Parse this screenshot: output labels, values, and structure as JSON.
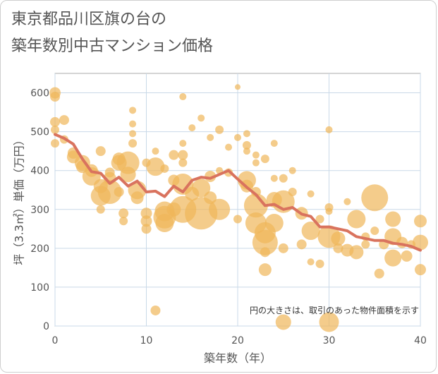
{
  "header": {
    "title_line1": "東京都品川区旗の台の",
    "title_line2": "築年数別中古マンション価格"
  },
  "colors": {
    "bubble": "#f0b65a",
    "line": "#d9735e",
    "grid": "#c9d9e8",
    "plot_border": "#aaaaaa"
  },
  "chart_data": {
    "type": "scatter",
    "xlabel": "築年数（年）",
    "ylabel": "坪（3.3㎡）単価（万円）",
    "xlim": [
      0,
      40
    ],
    "ylim": [
      0,
      650
    ],
    "xticks": [
      0,
      10,
      20,
      30,
      40
    ],
    "yticks": [
      0,
      100,
      200,
      300,
      400,
      500,
      600
    ],
    "note": "円の大きさは、取引のあった物件面積を示す",
    "grid": true,
    "bubbles": [
      {
        "x": 0,
        "y": 600,
        "s": 8
      },
      {
        "x": 0,
        "y": 590,
        "s": 7
      },
      {
        "x": 0,
        "y": 525,
        "s": 7
      },
      {
        "x": 0,
        "y": 505,
        "s": 6
      },
      {
        "x": 0,
        "y": 470,
        "s": 6
      },
      {
        "x": 1,
        "y": 530,
        "s": 7
      },
      {
        "x": 1,
        "y": 480,
        "s": 6
      },
      {
        "x": 2,
        "y": 445,
        "s": 8
      },
      {
        "x": 2,
        "y": 435,
        "s": 9
      },
      {
        "x": 3,
        "y": 420,
        "s": 11
      },
      {
        "x": 3,
        "y": 410,
        "s": 9
      },
      {
        "x": 4,
        "y": 385,
        "s": 13
      },
      {
        "x": 4,
        "y": 400,
        "s": 9
      },
      {
        "x": 5,
        "y": 450,
        "s": 7
      },
      {
        "x": 5,
        "y": 360,
        "s": 10
      },
      {
        "x": 5,
        "y": 335,
        "s": 14
      },
      {
        "x": 5,
        "y": 300,
        "s": 6
      },
      {
        "x": 6,
        "y": 345,
        "s": 17
      },
      {
        "x": 6,
        "y": 380,
        "s": 9
      },
      {
        "x": 6,
        "y": 395,
        "s": 7
      },
      {
        "x": 7,
        "y": 430,
        "s": 9
      },
      {
        "x": 7,
        "y": 420,
        "s": 11
      },
      {
        "x": 7,
        "y": 345,
        "s": 7
      },
      {
        "x": 7.5,
        "y": 290,
        "s": 7
      },
      {
        "x": 7.5,
        "y": 270,
        "s": 6
      },
      {
        "x": 8,
        "y": 420,
        "s": 16
      },
      {
        "x": 8,
        "y": 390,
        "s": 11
      },
      {
        "x": 8.5,
        "y": 555,
        "s": 5
      },
      {
        "x": 8.5,
        "y": 520,
        "s": 5
      },
      {
        "x": 8.5,
        "y": 495,
        "s": 5
      },
      {
        "x": 8.5,
        "y": 470,
        "s": 6
      },
      {
        "x": 9,
        "y": 350,
        "s": 13
      },
      {
        "x": 9,
        "y": 330,
        "s": 9
      },
      {
        "x": 10,
        "y": 290,
        "s": 8
      },
      {
        "x": 10,
        "y": 270,
        "s": 8
      },
      {
        "x": 10,
        "y": 250,
        "s": 7
      },
      {
        "x": 10,
        "y": 420,
        "s": 6
      },
      {
        "x": 11,
        "y": 450,
        "s": 5
      },
      {
        "x": 11,
        "y": 410,
        "s": 13
      },
      {
        "x": 11,
        "y": 40,
        "s": 7
      },
      {
        "x": 12,
        "y": 295,
        "s": 14
      },
      {
        "x": 12,
        "y": 280,
        "s": 16
      },
      {
        "x": 12,
        "y": 265,
        "s": 13
      },
      {
        "x": 12,
        "y": 405,
        "s": 6
      },
      {
        "x": 13,
        "y": 375,
        "s": 8
      },
      {
        "x": 13,
        "y": 440,
        "s": 7
      },
      {
        "x": 13,
        "y": 300,
        "s": 10
      },
      {
        "x": 14,
        "y": 590,
        "s": 5
      },
      {
        "x": 14,
        "y": 470,
        "s": 5
      },
      {
        "x": 14,
        "y": 440,
        "s": 7
      },
      {
        "x": 14,
        "y": 420,
        "s": 6
      },
      {
        "x": 14,
        "y": 365,
        "s": 15
      },
      {
        "x": 14,
        "y": 300,
        "s": 19
      },
      {
        "x": 15,
        "y": 510,
        "s": 5
      },
      {
        "x": 15,
        "y": 340,
        "s": 10
      },
      {
        "x": 16,
        "y": 535,
        "s": 5
      },
      {
        "x": 16,
        "y": 355,
        "s": 13
      },
      {
        "x": 16,
        "y": 290,
        "s": 23
      },
      {
        "x": 17,
        "y": 485,
        "s": 5
      },
      {
        "x": 17,
        "y": 385,
        "s": 8
      },
      {
        "x": 17,
        "y": 330,
        "s": 9
      },
      {
        "x": 18,
        "y": 505,
        "s": 6
      },
      {
        "x": 18,
        "y": 300,
        "s": 15
      },
      {
        "x": 18,
        "y": 400,
        "s": 5
      },
      {
        "x": 19,
        "y": 460,
        "s": 5
      },
      {
        "x": 19,
        "y": 395,
        "s": 6
      },
      {
        "x": 20,
        "y": 615,
        "s": 4
      },
      {
        "x": 20,
        "y": 485,
        "s": 5
      },
      {
        "x": 20,
        "y": 275,
        "s": 6
      },
      {
        "x": 21,
        "y": 495,
        "s": 5
      },
      {
        "x": 21,
        "y": 465,
        "s": 6
      },
      {
        "x": 21,
        "y": 450,
        "s": 5
      },
      {
        "x": 21,
        "y": 375,
        "s": 13
      },
      {
        "x": 21,
        "y": 360,
        "s": 9
      },
      {
        "x": 22,
        "y": 440,
        "s": 5
      },
      {
        "x": 22,
        "y": 420,
        "s": 5
      },
      {
        "x": 22,
        "y": 345,
        "s": 7
      },
      {
        "x": 22,
        "y": 310,
        "s": 17
      },
      {
        "x": 22,
        "y": 265,
        "s": 15
      },
      {
        "x": 23,
        "y": 430,
        "s": 6
      },
      {
        "x": 23,
        "y": 240,
        "s": 15
      },
      {
        "x": 23,
        "y": 215,
        "s": 18
      },
      {
        "x": 23,
        "y": 190,
        "s": 7
      },
      {
        "x": 23,
        "y": 145,
        "s": 9
      },
      {
        "x": 24,
        "y": 470,
        "s": 5
      },
      {
        "x": 24,
        "y": 380,
        "s": 5
      },
      {
        "x": 24,
        "y": 325,
        "s": 11
      },
      {
        "x": 24,
        "y": 265,
        "s": 13
      },
      {
        "x": 25,
        "y": 380,
        "s": 6
      },
      {
        "x": 25,
        "y": 320,
        "s": 16
      },
      {
        "x": 25,
        "y": 200,
        "s": 7
      },
      {
        "x": 25,
        "y": 10,
        "s": 11
      },
      {
        "x": 26,
        "y": 400,
        "s": 5
      },
      {
        "x": 26,
        "y": 345,
        "s": 6
      },
      {
        "x": 27,
        "y": 290,
        "s": 9
      },
      {
        "x": 27,
        "y": 210,
        "s": 7
      },
      {
        "x": 28,
        "y": 340,
        "s": 5
      },
      {
        "x": 28,
        "y": 245,
        "s": 13
      },
      {
        "x": 28,
        "y": 165,
        "s": 5
      },
      {
        "x": 29,
        "y": 275,
        "s": 6
      },
      {
        "x": 29,
        "y": 160,
        "s": 6
      },
      {
        "x": 30,
        "y": 505,
        "s": 5
      },
      {
        "x": 30,
        "y": 305,
        "s": 6
      },
      {
        "x": 30,
        "y": 295,
        "s": 5
      },
      {
        "x": 30,
        "y": 230,
        "s": 16
      },
      {
        "x": 30,
        "y": 10,
        "s": 14
      },
      {
        "x": 31,
        "y": 225,
        "s": 10
      },
      {
        "x": 31,
        "y": 200,
        "s": 7
      },
      {
        "x": 32,
        "y": 320,
        "s": 5
      },
      {
        "x": 32,
        "y": 195,
        "s": 9
      },
      {
        "x": 33,
        "y": 275,
        "s": 13
      },
      {
        "x": 33,
        "y": 190,
        "s": 10
      },
      {
        "x": 34,
        "y": 230,
        "s": 6
      },
      {
        "x": 34,
        "y": 210,
        "s": 6
      },
      {
        "x": 35,
        "y": 330,
        "s": 19
      },
      {
        "x": 35,
        "y": 245,
        "s": 6
      },
      {
        "x": 35.5,
        "y": 135,
        "s": 7
      },
      {
        "x": 36,
        "y": 210,
        "s": 7
      },
      {
        "x": 37,
        "y": 275,
        "s": 11
      },
      {
        "x": 37,
        "y": 230,
        "s": 12
      },
      {
        "x": 37,
        "y": 175,
        "s": 12
      },
      {
        "x": 38,
        "y": 215,
        "s": 8
      },
      {
        "x": 38.5,
        "y": 180,
        "s": 8
      },
      {
        "x": 39,
        "y": 210,
        "s": 6
      },
      {
        "x": 40,
        "y": 270,
        "s": 9
      },
      {
        "x": 40,
        "y": 215,
        "s": 11
      },
      {
        "x": 40,
        "y": 145,
        "s": 8
      }
    ],
    "series": [
      {
        "type": "line",
        "x": [
          0,
          1,
          2,
          3,
          4,
          5,
          6,
          7,
          8,
          9,
          10,
          11,
          12,
          13,
          14,
          15,
          16,
          17,
          18,
          19,
          20,
          21,
          22,
          23,
          24,
          25,
          26,
          27,
          28,
          29,
          30,
          31,
          32,
          33,
          34,
          35,
          36,
          37,
          38,
          39,
          40
        ],
        "y": [
          493,
          483,
          468,
          430,
          397,
          393,
          367,
          383,
          360,
          373,
          345,
          347,
          333,
          360,
          345,
          375,
          383,
          380,
          390,
          400,
          378,
          357,
          338,
          310,
          313,
          300,
          305,
          288,
          282,
          255,
          255,
          250,
          245,
          230,
          225,
          220,
          220,
          213,
          210,
          205,
          195
        ]
      }
    ]
  }
}
